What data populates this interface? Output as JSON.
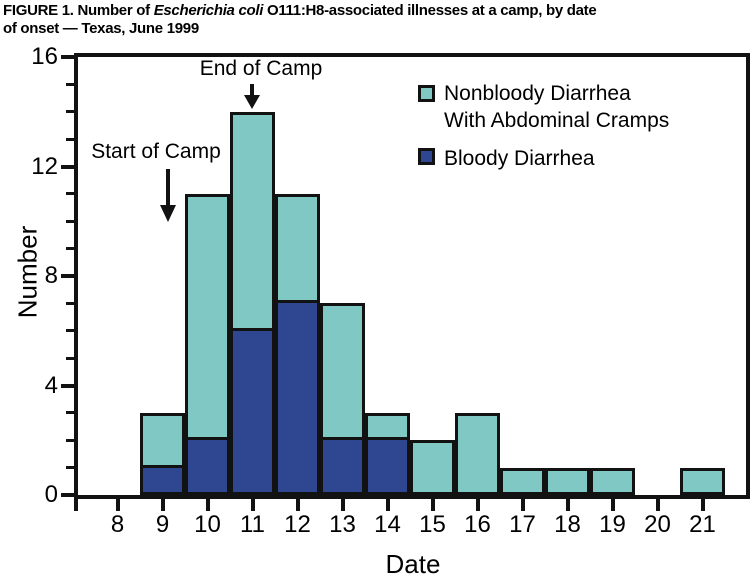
{
  "figure_title": {
    "prefix": "FIGURE 1. Number of ",
    "italic": "Escherichia coli",
    "suffix": " O111:H8-associated illnesses at a camp, by date",
    "line2": "of onset — Texas, June 1999"
  },
  "legend": {
    "items": [
      {
        "line1": "Nonbloody Diarrhea",
        "line2": "With Abdominal Cramps"
      },
      {
        "line1": "Bloody Diarrhea",
        "line2": ""
      }
    ]
  },
  "chart_data": {
    "type": "bar",
    "stacked": true,
    "title": "FIGURE 1. Number of Escherichia coli O111:H8-associated illnesses at a camp, by date of onset — Texas, June 1999",
    "xlabel": "Date",
    "ylabel": "Number",
    "x": [
      8,
      9,
      10,
      11,
      12,
      13,
      14,
      15,
      16,
      17,
      18,
      19,
      20,
      21
    ],
    "series": [
      {
        "name": "Bloody Diarrhea",
        "color": "#2f4790",
        "values": [
          0,
          1,
          2,
          6,
          7,
          2,
          2,
          0,
          0,
          0,
          0,
          0,
          0,
          0
        ]
      },
      {
        "name": "Nonbloody Diarrhea With Abdominal Cramps",
        "color": "#80c8c4",
        "values": [
          0,
          2,
          9,
          8,
          4,
          5,
          1,
          2,
          3,
          1,
          1,
          1,
          0,
          1
        ]
      }
    ],
    "totals": [
      0,
      3,
      11,
      14,
      11,
      7,
      3,
      2,
      3,
      1,
      1,
      1,
      0,
      1
    ],
    "ylim": [
      0,
      16
    ],
    "y_major_ticks": [
      0,
      4,
      8,
      12,
      16
    ],
    "y_minor_step": 1,
    "grid": false,
    "legend_position": "upper right",
    "annotations": [
      {
        "label": "Start of Camp",
        "x": 9
      },
      {
        "label": "End of Camp",
        "x": 11
      }
    ],
    "colors": {
      "outline": "#121212"
    }
  }
}
